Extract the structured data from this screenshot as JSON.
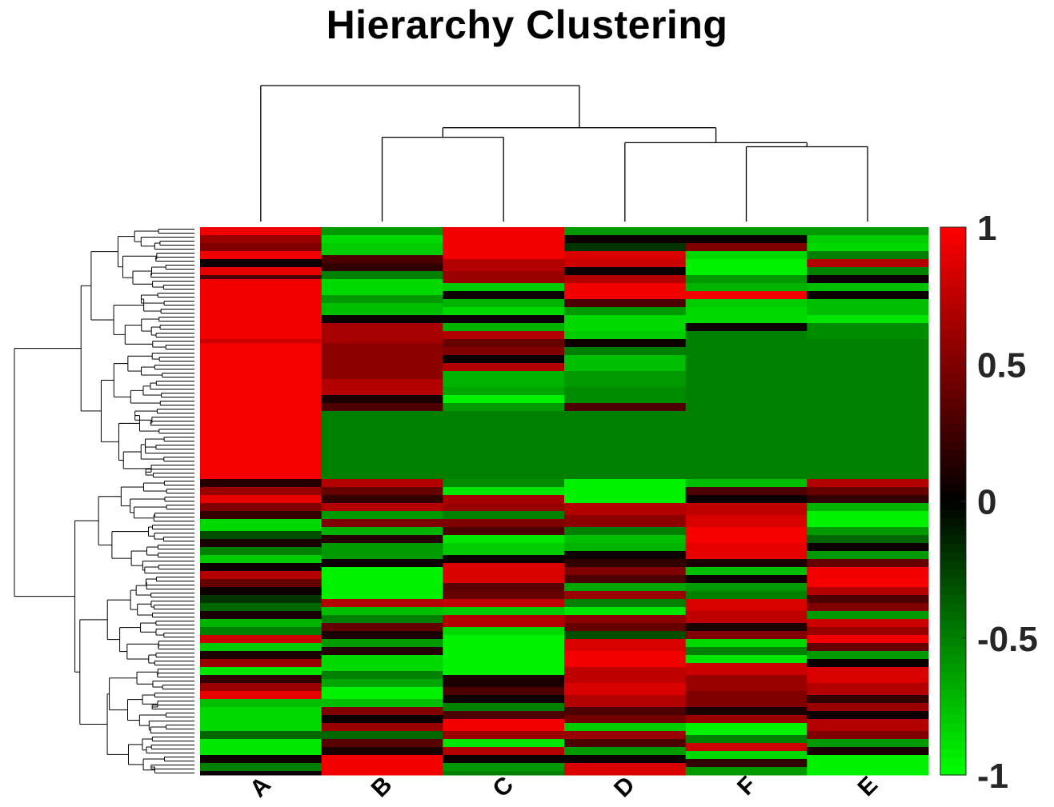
{
  "chart_data": {
    "type": "heatmap",
    "title": "Hierarchy Clustering",
    "xlabel": "",
    "ylabel": "",
    "columns": [
      "A",
      "B",
      "C",
      "D",
      "F",
      "E"
    ],
    "row_count": 137,
    "colorbar": {
      "min": -1,
      "max": 1,
      "ticks": [
        1,
        0.5,
        0,
        -0.5,
        -1
      ],
      "tick_labels": [
        "1",
        "0.5",
        "0",
        "-0.5",
        "-1"
      ],
      "low_color": "#00ff00",
      "mid_color": "#000000",
      "high_color": "#ff0000",
      "placement": "right"
    },
    "column_dendrogram": {
      "merges": [
        {
          "left": "F",
          "right": "E",
          "height": 0.55
        },
        {
          "left": "D",
          "right": "F+E",
          "height": 0.58
        },
        {
          "left": "B",
          "right": "C",
          "height": 0.62
        },
        {
          "left": "B+C",
          "right": "D+F+E",
          "height": 0.69
        },
        {
          "left": "A",
          "right": "B+C+D+F+E",
          "height": 1.0
        }
      ]
    },
    "row_dendrogram": "present-left",
    "bands": {
      "A": [
        [
          0,
          2,
          0.95
        ],
        [
          2,
          4,
          0.6
        ],
        [
          4,
          6,
          0.5
        ],
        [
          6,
          8,
          0.95
        ],
        [
          8,
          10,
          0.05
        ],
        [
          10,
          12,
          0.9
        ],
        [
          12,
          13,
          0.3
        ],
        [
          13,
          28,
          0.95
        ],
        [
          28,
          29,
          0.8
        ],
        [
          29,
          63,
          0.97
        ],
        [
          63,
          65,
          0.15
        ],
        [
          65,
          67,
          0.6
        ],
        [
          67,
          69,
          0.9
        ],
        [
          69,
          71,
          0.5
        ],
        [
          71,
          73,
          0.2
        ],
        [
          73,
          76,
          -0.85
        ],
        [
          76,
          78,
          -0.3
        ],
        [
          78,
          80,
          0.1
        ],
        [
          80,
          82,
          -0.5
        ],
        [
          82,
          84,
          -0.8
        ],
        [
          84,
          86,
          0.05
        ],
        [
          86,
          88,
          0.7
        ],
        [
          88,
          90,
          0.4
        ],
        [
          90,
          92,
          0.05
        ],
        [
          92,
          94,
          -0.2
        ],
        [
          94,
          96,
          -0.4
        ],
        [
          96,
          98,
          0.1
        ],
        [
          98,
          100,
          -0.7
        ],
        [
          100,
          102,
          -0.5
        ],
        [
          102,
          104,
          0.8
        ],
        [
          104,
          106,
          -0.8
        ],
        [
          106,
          108,
          0.1
        ],
        [
          108,
          110,
          0.6
        ],
        [
          110,
          112,
          -0.9
        ],
        [
          112,
          114,
          0.2
        ],
        [
          114,
          116,
          0.6
        ],
        [
          116,
          118,
          0.9
        ],
        [
          118,
          120,
          -0.75
        ],
        [
          120,
          126,
          -0.85
        ],
        [
          126,
          128,
          -0.4
        ],
        [
          128,
          132,
          -0.9
        ],
        [
          132,
          134,
          0.05
        ],
        [
          134,
          136,
          -0.5
        ],
        [
          136,
          137,
          0.05
        ]
      ],
      "B": [
        [
          0,
          2,
          -0.6
        ],
        [
          2,
          4,
          -0.85
        ],
        [
          4,
          7,
          -0.8
        ],
        [
          7,
          9,
          0.3
        ],
        [
          9,
          11,
          0.2
        ],
        [
          11,
          13,
          -0.5
        ],
        [
          13,
          17,
          -0.85
        ],
        [
          17,
          19,
          -0.6
        ],
        [
          19,
          22,
          -0.75
        ],
        [
          22,
          24,
          0.05
        ],
        [
          24,
          29,
          0.65
        ],
        [
          29,
          38,
          0.55
        ],
        [
          38,
          42,
          0.7
        ],
        [
          42,
          44,
          0.1
        ],
        [
          44,
          46,
          0.3
        ],
        [
          46,
          63,
          -0.5
        ],
        [
          63,
          65,
          0.7
        ],
        [
          65,
          67,
          0.4
        ],
        [
          67,
          69,
          0.2
        ],
        [
          69,
          71,
          0.7
        ],
        [
          71,
          73,
          -0.6
        ],
        [
          73,
          75,
          0.5
        ],
        [
          75,
          77,
          -0.7
        ],
        [
          77,
          79,
          0.15
        ],
        [
          79,
          83,
          -0.6
        ],
        [
          83,
          85,
          0.05
        ],
        [
          85,
          93,
          -0.95
        ],
        [
          93,
          95,
          0.7
        ],
        [
          95,
          97,
          -0.75
        ],
        [
          97,
          99,
          -0.5
        ],
        [
          99,
          101,
          0.4
        ],
        [
          101,
          103,
          0.1
        ],
        [
          103,
          105,
          -0.6
        ],
        [
          105,
          107,
          0.15
        ],
        [
          107,
          111,
          -0.85
        ],
        [
          111,
          113,
          -0.5
        ],
        [
          113,
          115,
          -0.65
        ],
        [
          115,
          118,
          -0.95
        ],
        [
          118,
          120,
          -0.75
        ],
        [
          120,
          122,
          0.5
        ],
        [
          122,
          124,
          0.05
        ],
        [
          124,
          126,
          0.6
        ],
        [
          126,
          128,
          -0.4
        ],
        [
          128,
          130,
          0.35
        ],
        [
          130,
          132,
          0.1
        ],
        [
          132,
          137,
          0.95
        ]
      ],
      "C": [
        [
          0,
          8,
          0.95
        ],
        [
          8,
          11,
          0.7
        ],
        [
          11,
          14,
          0.6
        ],
        [
          14,
          16,
          -0.8
        ],
        [
          16,
          18,
          0.05
        ],
        [
          18,
          20,
          -0.7
        ],
        [
          20,
          22,
          -0.85
        ],
        [
          22,
          24,
          0.05
        ],
        [
          24,
          26,
          -0.7
        ],
        [
          26,
          28,
          0.7
        ],
        [
          28,
          30,
          0.4
        ],
        [
          30,
          32,
          0.5
        ],
        [
          32,
          34,
          0.05
        ],
        [
          34,
          36,
          0.7
        ],
        [
          36,
          40,
          -0.7
        ],
        [
          40,
          42,
          -0.65
        ],
        [
          42,
          44,
          -0.95
        ],
        [
          44,
          46,
          -0.6
        ],
        [
          46,
          63,
          -0.5
        ],
        [
          63,
          65,
          -0.55
        ],
        [
          65,
          67,
          -0.9
        ],
        [
          67,
          69,
          0.65
        ],
        [
          69,
          71,
          0.6
        ],
        [
          71,
          73,
          -0.5
        ],
        [
          73,
          75,
          0.5
        ],
        [
          75,
          77,
          0.3
        ],
        [
          77,
          79,
          -0.9
        ],
        [
          79,
          82,
          -0.8
        ],
        [
          82,
          84,
          0.05
        ],
        [
          84,
          89,
          0.85
        ],
        [
          89,
          91,
          0.35
        ],
        [
          91,
          93,
          0.4
        ],
        [
          93,
          95,
          0.75
        ],
        [
          95,
          97,
          -0.8
        ],
        [
          97,
          100,
          0.7
        ],
        [
          100,
          102,
          -0.85
        ],
        [
          102,
          112,
          -0.95
        ],
        [
          112,
          115,
          0.1
        ],
        [
          115,
          117,
          0.3
        ],
        [
          117,
          119,
          0.05
        ],
        [
          119,
          121,
          -0.5
        ],
        [
          121,
          123,
          0.3
        ],
        [
          123,
          126,
          0.95
        ],
        [
          126,
          128,
          0.6
        ],
        [
          128,
          130,
          -0.9
        ],
        [
          130,
          132,
          0.7
        ],
        [
          132,
          134,
          0.05
        ],
        [
          134,
          136,
          -0.6
        ],
        [
          136,
          137,
          -0.5
        ]
      ],
      "D": [
        [
          0,
          2,
          -0.6
        ],
        [
          2,
          4,
          0.05
        ],
        [
          4,
          6,
          -0.2
        ],
        [
          6,
          8,
          0.85
        ],
        [
          8,
          10,
          0.8
        ],
        [
          10,
          12,
          0.05
        ],
        [
          12,
          14,
          0.7
        ],
        [
          14,
          18,
          0.95
        ],
        [
          18,
          20,
          0.3
        ],
        [
          20,
          22,
          -0.6
        ],
        [
          22,
          26,
          -0.85
        ],
        [
          26,
          28,
          -0.8
        ],
        [
          28,
          30,
          0.05
        ],
        [
          30,
          32,
          -0.5
        ],
        [
          32,
          36,
          -0.75
        ],
        [
          36,
          40,
          -0.6
        ],
        [
          40,
          44,
          -0.55
        ],
        [
          44,
          46,
          0.3
        ],
        [
          46,
          63,
          -0.5
        ],
        [
          63,
          69,
          -0.95
        ],
        [
          69,
          72,
          0.7
        ],
        [
          72,
          75,
          0.55
        ],
        [
          75,
          77,
          -0.5
        ],
        [
          77,
          79,
          -0.75
        ],
        [
          79,
          81,
          -0.7
        ],
        [
          81,
          83,
          0.05
        ],
        [
          83,
          85,
          0.2
        ],
        [
          85,
          87,
          0.5
        ],
        [
          87,
          89,
          0.3
        ],
        [
          89,
          91,
          -0.65
        ],
        [
          91,
          93,
          0.6
        ],
        [
          93,
          95,
          -0.5
        ],
        [
          95,
          97,
          -0.9
        ],
        [
          97,
          99,
          0.55
        ],
        [
          99,
          101,
          0.4
        ],
        [
          101,
          103,
          -0.3
        ],
        [
          103,
          106,
          0.85
        ],
        [
          106,
          110,
          0.95
        ],
        [
          110,
          114,
          0.75
        ],
        [
          114,
          117,
          0.85
        ],
        [
          117,
          120,
          0.7
        ],
        [
          120,
          122,
          0.3
        ],
        [
          122,
          124,
          0.45
        ],
        [
          124,
          126,
          -0.8
        ],
        [
          126,
          128,
          0.6
        ],
        [
          128,
          130,
          0.3
        ],
        [
          130,
          132,
          -0.6
        ],
        [
          132,
          134,
          0.05
        ],
        [
          134,
          137,
          0.85
        ]
      ],
      "F": [
        [
          0,
          2,
          -0.6
        ],
        [
          2,
          4,
          0.05
        ],
        [
          4,
          6,
          0.5
        ],
        [
          6,
          8,
          -0.85
        ],
        [
          8,
          12,
          -0.95
        ],
        [
          12,
          14,
          -0.6
        ],
        [
          14,
          16,
          -0.7
        ],
        [
          16,
          18,
          0.95
        ],
        [
          18,
          20,
          -0.8
        ],
        [
          20,
          24,
          -0.85
        ],
        [
          24,
          26,
          0.05
        ],
        [
          26,
          28,
          -0.5
        ],
        [
          28,
          46,
          -0.5
        ],
        [
          46,
          63,
          -0.5
        ],
        [
          63,
          65,
          -0.75
        ],
        [
          65,
          67,
          0.3
        ],
        [
          67,
          69,
          0.05
        ],
        [
          69,
          72,
          0.75
        ],
        [
          72,
          75,
          0.85
        ],
        [
          75,
          79,
          0.97
        ],
        [
          79,
          83,
          0.9
        ],
        [
          83,
          85,
          0.1
        ],
        [
          85,
          87,
          -0.75
        ],
        [
          87,
          89,
          0.05
        ],
        [
          89,
          91,
          -0.6
        ],
        [
          91,
          93,
          -0.5
        ],
        [
          93,
          96,
          0.85
        ],
        [
          96,
          99,
          0.75
        ],
        [
          99,
          101,
          0.1
        ],
        [
          101,
          103,
          0.5
        ],
        [
          103,
          105,
          -0.85
        ],
        [
          105,
          107,
          -0.5
        ],
        [
          107,
          109,
          -0.9
        ],
        [
          109,
          112,
          0.8
        ],
        [
          112,
          116,
          0.6
        ],
        [
          116,
          120,
          0.5
        ],
        [
          120,
          122,
          0.1
        ],
        [
          122,
          124,
          0.6
        ],
        [
          124,
          127,
          -0.95
        ],
        [
          127,
          129,
          -0.5
        ],
        [
          129,
          131,
          0.8
        ],
        [
          131,
          133,
          -0.85
        ],
        [
          133,
          135,
          0.2
        ],
        [
          135,
          137,
          -0.6
        ]
      ],
      "E": [
        [
          0,
          2,
          -0.6
        ],
        [
          2,
          4,
          -0.8
        ],
        [
          4,
          6,
          -0.85
        ],
        [
          6,
          8,
          -0.5
        ],
        [
          8,
          10,
          0.7
        ],
        [
          10,
          12,
          -0.5
        ],
        [
          12,
          14,
          0.05
        ],
        [
          14,
          16,
          -0.75
        ],
        [
          16,
          18,
          0.05
        ],
        [
          18,
          22,
          -0.75
        ],
        [
          22,
          24,
          -0.9
        ],
        [
          24,
          28,
          -0.55
        ],
        [
          28,
          46,
          -0.5
        ],
        [
          46,
          63,
          -0.5
        ],
        [
          63,
          65,
          0.7
        ],
        [
          65,
          67,
          0.4
        ],
        [
          67,
          69,
          0.2
        ],
        [
          69,
          71,
          -0.7
        ],
        [
          71,
          75,
          -0.95
        ],
        [
          75,
          77,
          -0.6
        ],
        [
          77,
          79,
          -0.4
        ],
        [
          79,
          81,
          0.05
        ],
        [
          81,
          83,
          -0.6
        ],
        [
          83,
          85,
          0.4
        ],
        [
          85,
          88,
          0.95
        ],
        [
          88,
          90,
          0.97
        ],
        [
          90,
          92,
          0.7
        ],
        [
          92,
          94,
          0.3
        ],
        [
          94,
          96,
          0.5
        ],
        [
          96,
          98,
          -0.6
        ],
        [
          98,
          100,
          0.8
        ],
        [
          100,
          102,
          0.6
        ],
        [
          102,
          104,
          0.95
        ],
        [
          104,
          106,
          0.4
        ],
        [
          106,
          108,
          -0.6
        ],
        [
          108,
          110,
          0.05
        ],
        [
          110,
          114,
          0.85
        ],
        [
          114,
          117,
          0.7
        ],
        [
          117,
          119,
          0.2
        ],
        [
          119,
          121,
          0.6
        ],
        [
          121,
          123,
          0.05
        ],
        [
          123,
          126,
          0.7
        ],
        [
          126,
          128,
          0.5
        ],
        [
          128,
          130,
          -0.6
        ],
        [
          130,
          132,
          0.1
        ],
        [
          132,
          137,
          -0.95
        ]
      ]
    }
  }
}
